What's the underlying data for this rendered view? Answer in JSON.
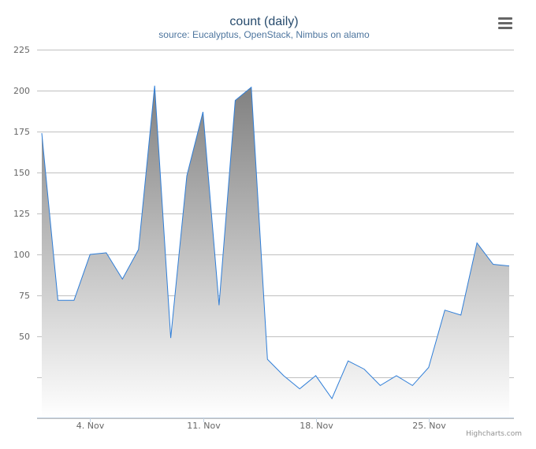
{
  "chart_data": {
    "type": "area",
    "title": "count (daily)",
    "subtitle": "source: Eucalyptus, OpenStack, Nimbus on alamo",
    "credits": "Highcharts.com",
    "start_date": "2013-11-01",
    "x": [
      "2013-11-01",
      "2013-11-02",
      "2013-11-03",
      "2013-11-04",
      "2013-11-05",
      "2013-11-06",
      "2013-11-07",
      "2013-11-08",
      "2013-11-09",
      "2013-11-10",
      "2013-11-11",
      "2013-11-12",
      "2013-11-13",
      "2013-11-14",
      "2013-11-15",
      "2013-11-16",
      "2013-11-17",
      "2013-11-18",
      "2013-11-19",
      "2013-11-20",
      "2013-11-21",
      "2013-11-22",
      "2013-11-23",
      "2013-11-24",
      "2013-11-25",
      "2013-11-26",
      "2013-11-27",
      "2013-11-28",
      "2013-11-29",
      "2013-11-30"
    ],
    "values": [
      174,
      72,
      72,
      100,
      101,
      85,
      103,
      203,
      49,
      148,
      187,
      69,
      194,
      202,
      36,
      26,
      18,
      26,
      12,
      35,
      30,
      20,
      26,
      20,
      31,
      66,
      63,
      107,
      94,
      93
    ],
    "yticks": [
      50,
      75,
      100,
      125,
      150,
      175,
      200,
      225
    ],
    "ylim": [
      0,
      225
    ],
    "xtick_labels": [
      "4. Nov",
      "11. Nov",
      "18. Nov",
      "25. Nov"
    ],
    "grid": true,
    "legend": "none",
    "colors": {
      "line": "#2f7ed8",
      "area_top": "#808080",
      "area_bottom": "#ffffff",
      "grid": "#c0c0c0",
      "axis_line": "#c0d0e0",
      "title": "#274b6d",
      "subtitle": "#4d759e",
      "tick_label": "#666666",
      "credits": "#909090",
      "menu_icon": "#666666"
    }
  }
}
